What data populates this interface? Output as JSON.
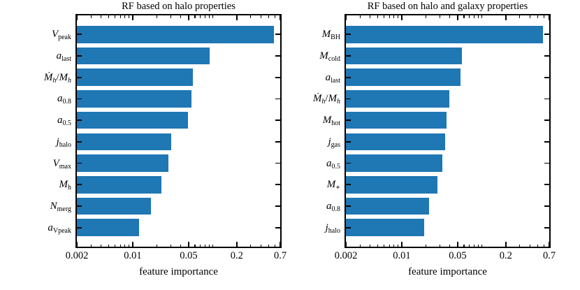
{
  "chart_data": [
    {
      "type": "bar",
      "orientation": "horizontal",
      "title": "RF based on halo properties",
      "xlabel": "feature importance",
      "xscale": "log",
      "xlim": [
        0.002,
        0.7
      ],
      "grid": false,
      "legend": null,
      "bar_color": "#1f77b4",
      "xticks_major": [
        {
          "v": 0.002,
          "label": "0.002"
        },
        {
          "v": 0.01,
          "label": "0.01"
        },
        {
          "v": 0.05,
          "label": "0.05"
        },
        {
          "v": 0.2,
          "label": "0.2"
        },
        {
          "v": 0.7,
          "label": "0.7"
        }
      ],
      "xticks_minor": [
        0.003,
        0.004,
        0.005,
        0.006,
        0.007,
        0.008,
        0.009,
        0.02,
        0.03,
        0.04,
        0.06,
        0.07,
        0.08,
        0.09,
        0.1,
        0.3,
        0.4,
        0.5,
        0.6
      ],
      "categories": [
        "V_peak",
        "a_last",
        "Mdot_h/M_h",
        "a_0.8",
        "a_0.5",
        "j_halo",
        "V_max",
        "M_h",
        "N_merg",
        "a_Vpeak"
      ],
      "values": [
        0.58,
        0.092,
        0.057,
        0.054,
        0.049,
        0.03,
        0.028,
        0.023,
        0.017,
        0.012
      ],
      "categories_rich": [
        [
          [
            "V",
            "i"
          ],
          [
            "peak",
            "s"
          ]
        ],
        [
          [
            "a",
            "i"
          ],
          [
            "last",
            "s"
          ]
        ],
        [
          [
            "Ṁ",
            "i"
          ],
          [
            "h",
            "is"
          ],
          [
            "/",
            ""
          ],
          [
            "M",
            "i"
          ],
          [
            "h",
            "is"
          ]
        ],
        [
          [
            "a",
            "i"
          ],
          [
            "0.8",
            "s"
          ]
        ],
        [
          [
            "a",
            "i"
          ],
          [
            "0.5",
            "s"
          ]
        ],
        [
          [
            "j",
            "i"
          ],
          [
            "halo",
            "s"
          ]
        ],
        [
          [
            "V",
            "i"
          ],
          [
            "max",
            "s"
          ]
        ],
        [
          [
            "M",
            "i"
          ],
          [
            "h",
            "s"
          ]
        ],
        [
          [
            "N",
            "i"
          ],
          [
            "merg",
            "s"
          ]
        ],
        [
          [
            "a",
            "i"
          ],
          [
            "Vpeak",
            "s"
          ]
        ]
      ]
    },
    {
      "type": "bar",
      "orientation": "horizontal",
      "title": "RF based on halo and galaxy properties",
      "xlabel": "feature importance",
      "xscale": "log",
      "xlim": [
        0.002,
        0.7
      ],
      "grid": false,
      "legend": null,
      "bar_color": "#1f77b4",
      "xticks_major": [
        {
          "v": 0.002,
          "label": "0.002"
        },
        {
          "v": 0.01,
          "label": "0.01"
        },
        {
          "v": 0.05,
          "label": "0.05"
        },
        {
          "v": 0.2,
          "label": "0.2"
        },
        {
          "v": 0.7,
          "label": "0.7"
        }
      ],
      "xticks_minor": [
        0.003,
        0.004,
        0.005,
        0.006,
        0.007,
        0.008,
        0.009,
        0.02,
        0.03,
        0.04,
        0.06,
        0.07,
        0.08,
        0.09,
        0.1,
        0.3,
        0.4,
        0.5,
        0.6
      ],
      "categories": [
        "M_BH",
        "M_cold",
        "a_last",
        "Mdot_h/M_h",
        "M_hot",
        "j_gas",
        "a_0.5",
        "M_*",
        "a_0.8",
        "j_halo"
      ],
      "values": [
        0.58,
        0.056,
        0.054,
        0.039,
        0.036,
        0.035,
        0.032,
        0.028,
        0.022,
        0.019
      ],
      "categories_rich": [
        [
          [
            "M",
            "i"
          ],
          [
            "BH",
            "s"
          ]
        ],
        [
          [
            "M",
            "i"
          ],
          [
            "cold",
            "s"
          ]
        ],
        [
          [
            "a",
            "i"
          ],
          [
            "last",
            "s"
          ]
        ],
        [
          [
            "Ṁ",
            "i"
          ],
          [
            "h",
            "is"
          ],
          [
            "/",
            ""
          ],
          [
            "M",
            "i"
          ],
          [
            "h",
            "is"
          ]
        ],
        [
          [
            "M",
            "i"
          ],
          [
            "hot",
            "s"
          ]
        ],
        [
          [
            "j",
            "i"
          ],
          [
            "gas",
            "s"
          ]
        ],
        [
          [
            "a",
            "i"
          ],
          [
            "0.5",
            "s"
          ]
        ],
        [
          [
            "M",
            "i"
          ],
          [
            "∗",
            "s"
          ]
        ],
        [
          [
            "a",
            "i"
          ],
          [
            "0.8",
            "s"
          ]
        ],
        [
          [
            "j",
            "i"
          ],
          [
            "halo",
            "s"
          ]
        ]
      ]
    }
  ]
}
